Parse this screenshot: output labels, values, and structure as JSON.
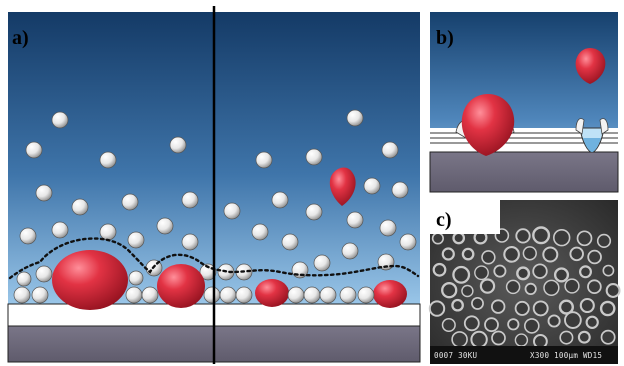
{
  "panels": {
    "a": {
      "label": "a)"
    },
    "b": {
      "label": "b)"
    },
    "c": {
      "label": "c)"
    }
  },
  "sem_scale_bar": {
    "text_left": "0007  30KU",
    "text_right": "X300 100μm WD15"
  },
  "colors": {
    "background_top": "#143b66",
    "background_bottom": "#8fc0e6",
    "droplet": "#d92a3a",
    "substrate_top": "#ffffff",
    "substrate_bottom": "#6e6a7a",
    "divider": "#000000"
  }
}
